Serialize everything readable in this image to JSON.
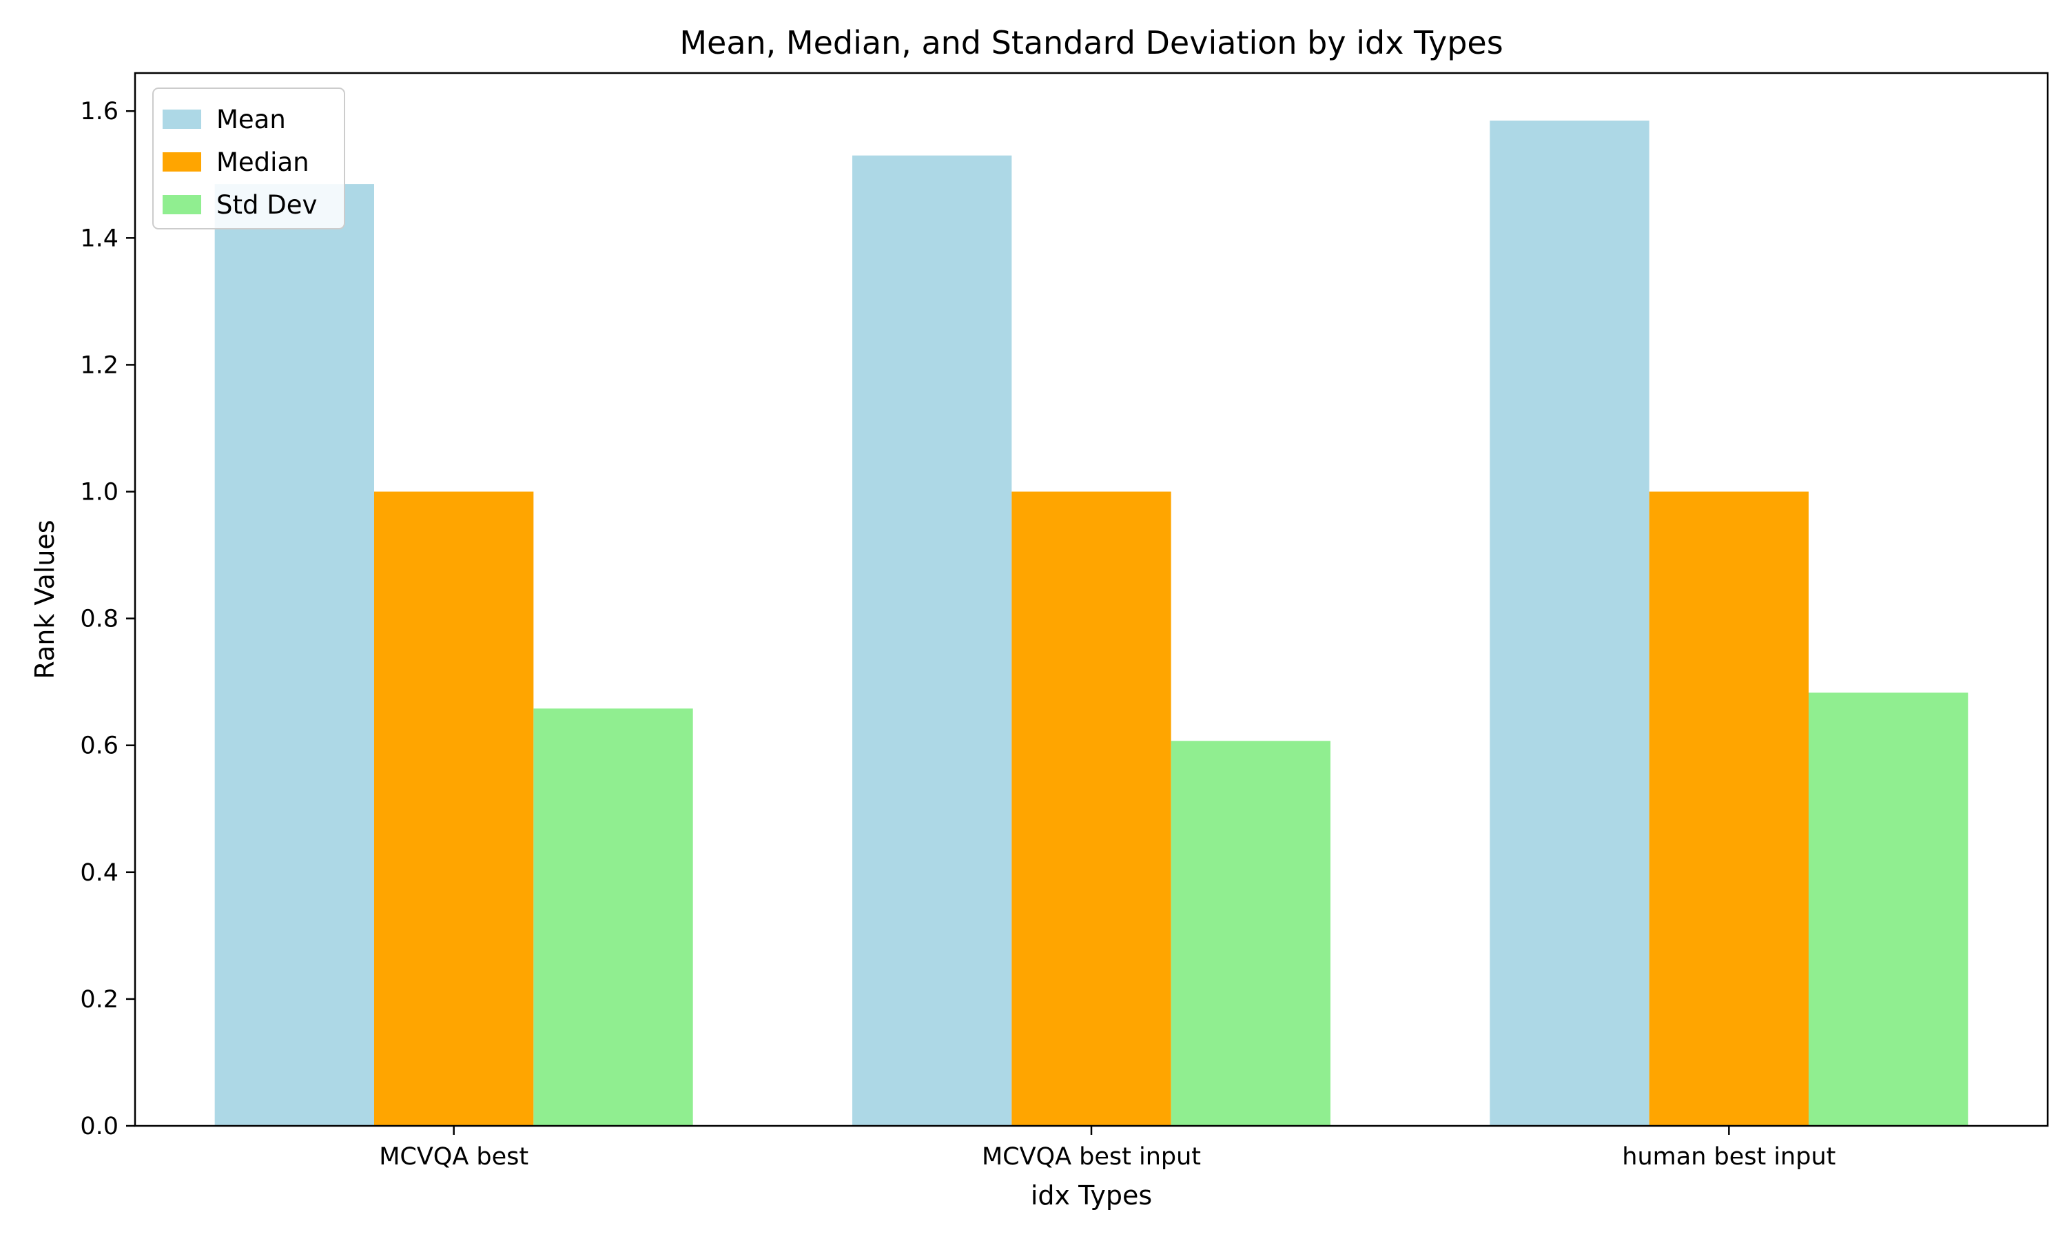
{
  "chart_data": {
    "type": "bar",
    "title": "Mean, Median, and Standard Deviation by idx Types",
    "xlabel": "idx Types",
    "ylabel": "Rank Values",
    "categories": [
      "MCVQA best",
      "MCVQA best input",
      "human best input"
    ],
    "series": [
      {
        "name": "Mean",
        "color": "#add8e6",
        "values": [
          1.485,
          1.53,
          1.585
        ]
      },
      {
        "name": "Median",
        "color": "#ffa500",
        "values": [
          1.0,
          1.0,
          1.0
        ]
      },
      {
        "name": "Std Dev",
        "color": "#90ee90",
        "values": [
          0.658,
          0.607,
          0.683
        ]
      }
    ],
    "ylim": [
      0,
      1.66
    ],
    "yticks": [
      0.0,
      0.2,
      0.4,
      0.6,
      0.8,
      1.0,
      1.2,
      1.4,
      1.6
    ],
    "ytick_labels": [
      "0.0",
      "0.2",
      "0.4",
      "0.6",
      "0.8",
      "1.0",
      "1.2",
      "1.4",
      "1.6"
    ],
    "grid": false,
    "legend_position": "top-left"
  }
}
